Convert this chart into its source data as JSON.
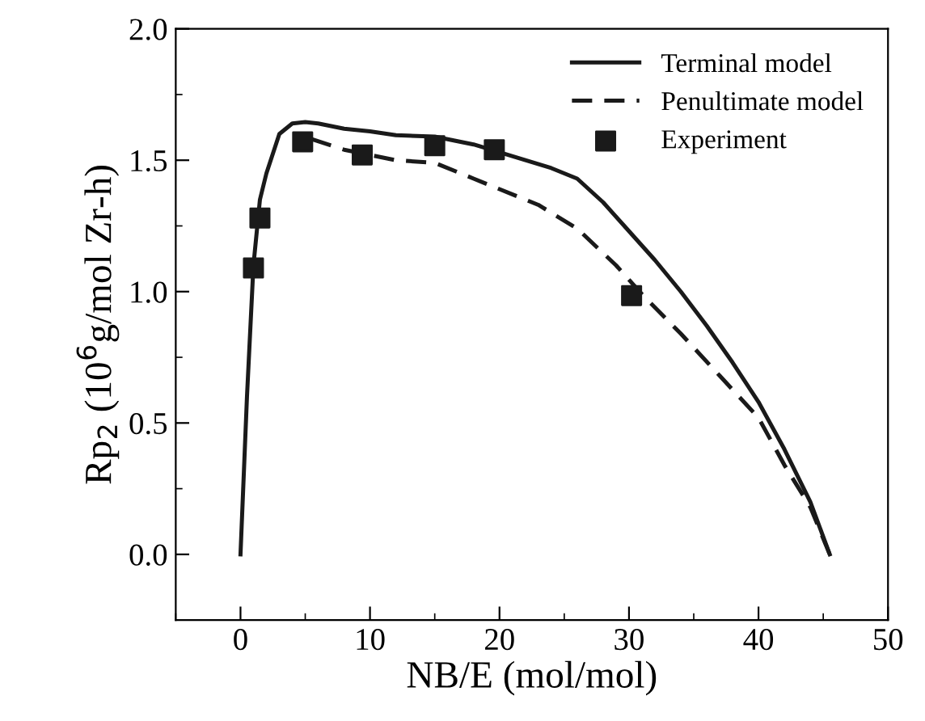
{
  "chart_data": {
    "type": "line",
    "xlabel": "NB/E (mol/mol)",
    "ylabel": "Rp$_{2}$ (10$^{6}$g/mol Zr-h)",
    "xlim": [
      -5,
      50
    ],
    "xticks": [
      0,
      10,
      20,
      30,
      40,
      50
    ],
    "ylim": [
      -0.25,
      2.0
    ],
    "yticks": [
      {
        "value": 0,
        "label": "0.0"
      },
      0.5,
      {
        "value": 1,
        "label": "1.0"
      },
      1.5,
      {
        "value": 2,
        "label": "2.0"
      }
    ],
    "grid": false,
    "legend": "top right",
    "series": [
      {
        "name": "Terminal model",
        "color": "#1a1a1a",
        "line_style": "solid",
        "marker": "none",
        "x": [
          0,
          0.5,
          1,
          1.5,
          2,
          3,
          4,
          5,
          6,
          8,
          10,
          12,
          15,
          18,
          20,
          24,
          26,
          28,
          30,
          32,
          34,
          36,
          38,
          40,
          42,
          44,
          45.5
        ],
        "values": [
          0,
          0.6,
          1.1,
          1.35,
          1.45,
          1.6,
          1.64,
          1.645,
          1.64,
          1.62,
          1.61,
          1.595,
          1.59,
          1.56,
          1.53,
          1.47,
          1.43,
          1.34,
          1.23,
          1.12,
          1.0,
          0.87,
          0.73,
          0.58,
          0.4,
          0.2,
          0.0
        ]
      },
      {
        "name": "Penultimate model",
        "color": "#1a1a1a",
        "line_style": "dashed",
        "marker": "none",
        "x": [
          5.5,
          8,
          10,
          12,
          15,
          18,
          20,
          23,
          26,
          29,
          31,
          34,
          37,
          40,
          42,
          44,
          45.5
        ],
        "values": [
          1.58,
          1.54,
          1.52,
          1.5,
          1.49,
          1.43,
          1.39,
          1.33,
          1.24,
          1.1,
          0.99,
          0.84,
          0.68,
          0.52,
          0.34,
          0.18,
          0.0
        ]
      },
      {
        "name": "Experiment",
        "type": "scatter",
        "color": "#1a1a1a",
        "marker": "square",
        "x": [
          1,
          1.5,
          4.8,
          9.4,
          15,
          19.6,
          30.2
        ],
        "values": [
          1.09,
          1.28,
          1.57,
          1.52,
          1.555,
          1.54,
          0.985
        ]
      }
    ]
  }
}
